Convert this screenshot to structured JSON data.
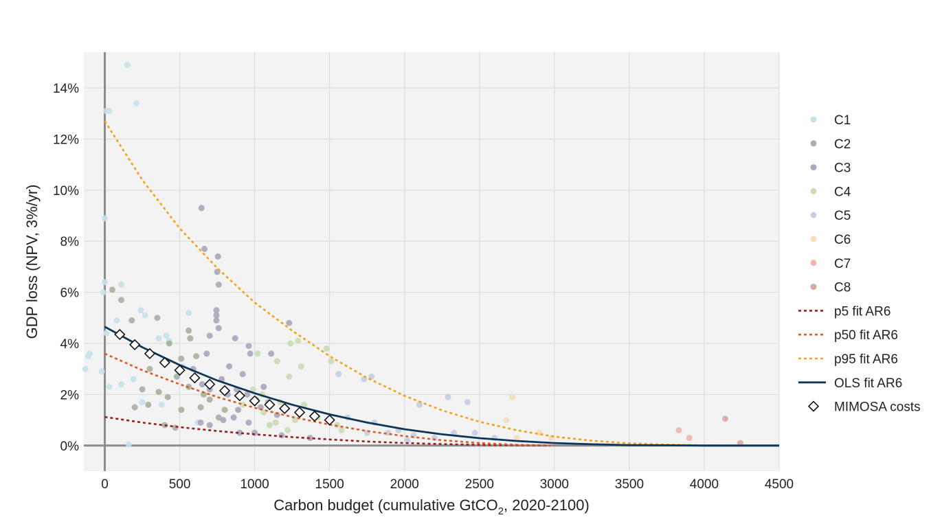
{
  "chart_data": {
    "type": "scatter",
    "xlabel_main": "Carbon budget (cumulative GtCO",
    "xlabel_sub": "2",
    "xlabel_tail": ", 2020-2100)",
    "ylabel": "GDP loss (NPV, 3%/yr)",
    "xlim": [
      -140,
      4500
    ],
    "ylim": [
      -1.0,
      15.4
    ],
    "x_ticks": [
      0,
      500,
      1000,
      1500,
      2000,
      2500,
      3000,
      3500,
      4000,
      4500
    ],
    "x_tick_labels": [
      "0",
      "500",
      "1000",
      "1500",
      "2000",
      "2500",
      "3000",
      "3500",
      "4000",
      "4500"
    ],
    "y_ticks": [
      0,
      2,
      4,
      6,
      8,
      10,
      12,
      14
    ],
    "y_tick_labels": [
      "0%",
      "2%",
      "4%",
      "6%",
      "8%",
      "10%",
      "12%",
      "14%"
    ],
    "grid": true,
    "legend_position": "right",
    "background_color": "#f3f3f3",
    "scatter_series": [
      {
        "name": "C1",
        "color": "#c6e1ea",
        "points": [
          [
            150,
            14.9
          ],
          [
            210,
            13.4
          ],
          [
            10,
            13.1
          ],
          [
            30,
            13.1
          ],
          [
            0,
            8.9
          ],
          [
            0,
            6.4
          ],
          [
            110,
            6.3
          ],
          [
            -10,
            6.0
          ],
          [
            80,
            4.9
          ],
          [
            240,
            5.3
          ],
          [
            270,
            5.1
          ],
          [
            -100,
            3.6
          ],
          [
            -110,
            3.5
          ],
          [
            -130,
            3.0
          ],
          [
            -20,
            2.9
          ],
          [
            10,
            4.4
          ],
          [
            30,
            2.3
          ],
          [
            110,
            2.4
          ],
          [
            190,
            2.6
          ],
          [
            160,
            0.05
          ],
          [
            360,
            4.2
          ],
          [
            410,
            4.3
          ],
          [
            430,
            4.1
          ],
          [
            560,
            5.2
          ],
          [
            380,
            1.6
          ],
          [
            620,
            0.9
          ],
          [
            250,
            1.7
          ],
          [
            520,
            3.1
          ]
        ]
      },
      {
        "name": "C2",
        "color": "#a9b09d",
        "points": [
          [
            50,
            6.1
          ],
          [
            110,
            5.7
          ],
          [
            180,
            4.9
          ],
          [
            350,
            5.0
          ],
          [
            430,
            4.0
          ],
          [
            510,
            3.4
          ],
          [
            560,
            4.5
          ],
          [
            570,
            4.2
          ],
          [
            610,
            3.5
          ],
          [
            480,
            2.7
          ],
          [
            420,
            1.9
          ],
          [
            360,
            2.1
          ],
          [
            250,
            2.2
          ],
          [
            200,
            1.5
          ],
          [
            290,
            1.6
          ],
          [
            400,
            0.8
          ],
          [
            510,
            1.4
          ],
          [
            470,
            0.7
          ],
          [
            640,
            1.5
          ],
          [
            700,
            1.8
          ],
          [
            760,
            1.1
          ],
          [
            560,
            2.3
          ],
          [
            660,
            2.0
          ],
          [
            300,
            3.0
          ],
          [
            800,
            1.4
          ]
        ]
      },
      {
        "name": "C3",
        "color": "#a8a7bb",
        "points": [
          [
            645,
            9.3
          ],
          [
            665,
            7.7
          ],
          [
            755,
            7.4
          ],
          [
            750,
            6.8
          ],
          [
            760,
            6.3
          ],
          [
            745,
            5.3
          ],
          [
            745,
            5.1
          ],
          [
            745,
            4.9
          ],
          [
            760,
            4.6
          ],
          [
            700,
            4.3
          ],
          [
            870,
            4.2
          ],
          [
            960,
            3.9
          ],
          [
            1110,
            3.6
          ],
          [
            1230,
            4.8
          ],
          [
            970,
            3.6
          ],
          [
            680,
            3.6
          ],
          [
            830,
            3.1
          ],
          [
            920,
            2.8
          ],
          [
            780,
            2.6
          ],
          [
            650,
            2.4
          ],
          [
            700,
            2.2
          ],
          [
            880,
            2.2
          ],
          [
            950,
            2.0
          ],
          [
            1010,
            1.8
          ],
          [
            1090,
            1.7
          ],
          [
            1040,
            1.5
          ],
          [
            890,
            1.4
          ],
          [
            860,
            1.1
          ],
          [
            790,
            1.0
          ],
          [
            700,
            0.8
          ],
          [
            640,
            0.9
          ],
          [
            960,
            0.9
          ],
          [
            1000,
            0.5
          ],
          [
            900,
            0.5
          ],
          [
            1150,
            1.2
          ],
          [
            1180,
            0.4
          ],
          [
            1370,
            0.3
          ],
          [
            590,
            3.0
          ],
          [
            820,
            2.0
          ],
          [
            1060,
            2.3
          ]
        ]
      },
      {
        "name": "C4",
        "color": "#c9dcb5",
        "points": [
          [
            1240,
            4.0
          ],
          [
            1290,
            4.1
          ],
          [
            1480,
            3.8
          ],
          [
            1510,
            3.3
          ],
          [
            1310,
            3.1
          ],
          [
            1150,
            3.3
          ],
          [
            1230,
            2.7
          ],
          [
            1020,
            3.6
          ],
          [
            990,
            2.2
          ],
          [
            1050,
            2.0
          ],
          [
            1170,
            1.7
          ],
          [
            1140,
            0.9
          ],
          [
            1270,
            1.0
          ],
          [
            1220,
            0.6
          ],
          [
            920,
            1.6
          ],
          [
            1060,
            1.3
          ],
          [
            1330,
            1.6
          ],
          [
            1420,
            1.1
          ],
          [
            1550,
            0.8
          ],
          [
            1580,
            0.6
          ],
          [
            1100,
            0.8
          ]
        ]
      },
      {
        "name": "C5",
        "color": "#c2cfe3",
        "points": [
          [
            1560,
            2.8
          ],
          [
            1730,
            2.6
          ],
          [
            1780,
            2.7
          ],
          [
            1800,
            0.9
          ],
          [
            1960,
            0.6
          ],
          [
            2100,
            1.6
          ],
          [
            2290,
            1.9
          ],
          [
            2420,
            1.7
          ],
          [
            1750,
            0.5
          ],
          [
            1890,
            0.5
          ],
          [
            2060,
            0.4
          ],
          [
            2330,
            0.5
          ],
          [
            2470,
            0.5
          ],
          [
            1620,
            1.1
          ],
          [
            2200,
            0.3
          ],
          [
            2600,
            0.3
          ],
          [
            2020,
            0.2
          ]
        ]
      },
      {
        "name": "C6",
        "color": "#f6dcc0",
        "points": [
          [
            2720,
            1.9
          ],
          [
            2680,
            1.0
          ],
          [
            2900,
            0.5
          ],
          [
            2750,
            0.3
          ],
          [
            2980,
            0.3
          ]
        ]
      },
      {
        "name": "C7",
        "color": "#eeb8a8",
        "points": [
          [
            3830,
            0.6
          ],
          [
            3900,
            0.3
          ]
        ]
      },
      {
        "name": "C8",
        "color": "#d9aaa3",
        "points": [
          [
            4140,
            1.05
          ],
          [
            4240,
            0.1
          ]
        ]
      }
    ],
    "curve_series": [
      {
        "name": "p5 fit AR6",
        "color": "#9b1b1b",
        "style": "dotted",
        "points": [
          [
            0,
            1.12
          ],
          [
            250,
            0.9
          ],
          [
            500,
            0.72
          ],
          [
            750,
            0.57
          ],
          [
            1000,
            0.44
          ],
          [
            1250,
            0.33
          ],
          [
            1500,
            0.24
          ],
          [
            1750,
            0.16
          ],
          [
            2000,
            0.1
          ],
          [
            2250,
            0.06
          ],
          [
            2500,
            0.03
          ],
          [
            2750,
            0.01
          ],
          [
            2950,
            0.0
          ]
        ]
      },
      {
        "name": "p50 fit AR6",
        "color": "#d95a26",
        "style": "dotted",
        "points": [
          [
            0,
            3.6
          ],
          [
            250,
            2.95
          ],
          [
            500,
            2.4
          ],
          [
            750,
            1.9
          ],
          [
            1000,
            1.48
          ],
          [
            1250,
            1.12
          ],
          [
            1500,
            0.82
          ],
          [
            1750,
            0.57
          ],
          [
            2000,
            0.37
          ],
          [
            2250,
            0.21
          ],
          [
            2500,
            0.1
          ],
          [
            2750,
            0.03
          ],
          [
            3000,
            0.0
          ]
        ]
      },
      {
        "name": "p95 fit AR6",
        "color": "#f2a316",
        "style": "dotted",
        "points": [
          [
            0,
            12.7
          ],
          [
            250,
            10.4
          ],
          [
            500,
            8.5
          ],
          [
            750,
            6.95
          ],
          [
            1000,
            5.6
          ],
          [
            1250,
            4.5
          ],
          [
            1500,
            3.5
          ],
          [
            1750,
            2.65
          ],
          [
            2000,
            1.95
          ],
          [
            2250,
            1.38
          ],
          [
            2500,
            0.93
          ],
          [
            2750,
            0.6
          ],
          [
            3000,
            0.35
          ],
          [
            3250,
            0.19
          ],
          [
            3500,
            0.09
          ],
          [
            3750,
            0.04
          ],
          [
            4000,
            0.01
          ],
          [
            4200,
            0.0
          ]
        ]
      },
      {
        "name": "OLS fit AR6",
        "color": "#0e3556",
        "style": "solid",
        "points": [
          [
            0,
            4.65
          ],
          [
            250,
            3.85
          ],
          [
            500,
            3.15
          ],
          [
            750,
            2.55
          ],
          [
            1000,
            2.05
          ],
          [
            1250,
            1.6
          ],
          [
            1500,
            1.22
          ],
          [
            1750,
            0.9
          ],
          [
            2000,
            0.64
          ],
          [
            2250,
            0.44
          ],
          [
            2500,
            0.29
          ],
          [
            2750,
            0.18
          ],
          [
            3000,
            0.1
          ],
          [
            3250,
            0.05
          ],
          [
            3500,
            0.02
          ],
          [
            3750,
            0.01
          ],
          [
            4000,
            0.0
          ],
          [
            4500,
            0.0
          ]
        ]
      }
    ],
    "mimosa_series": {
      "name": "MIMOSA costs",
      "points": [
        [
          100,
          4.35
        ],
        [
          200,
          3.95
        ],
        [
          300,
          3.6
        ],
        [
          400,
          3.25
        ],
        [
          500,
          2.95
        ],
        [
          600,
          2.65
        ],
        [
          700,
          2.4
        ],
        [
          800,
          2.15
        ],
        [
          900,
          1.95
        ],
        [
          1000,
          1.75
        ],
        [
          1100,
          1.6
        ],
        [
          1200,
          1.45
        ],
        [
          1300,
          1.3
        ],
        [
          1400,
          1.15
        ],
        [
          1500,
          1.0
        ]
      ]
    },
    "legend": [
      {
        "label": "C1",
        "kind": "dot",
        "color": "#c6e1ea"
      },
      {
        "label": "C2",
        "kind": "dot",
        "color": "#a9b09d"
      },
      {
        "label": "C3",
        "kind": "dot",
        "color": "#a8a7bb"
      },
      {
        "label": "C4",
        "kind": "dot",
        "color": "#c9dcb5"
      },
      {
        "label": "C5",
        "kind": "dot",
        "color": "#c2cfe3"
      },
      {
        "label": "C6",
        "kind": "dot",
        "color": "#f6dcc0"
      },
      {
        "label": "C7",
        "kind": "dot",
        "color": "#eeb8a8"
      },
      {
        "label": "C8",
        "kind": "dot",
        "color": "#d9aaa3"
      },
      {
        "label": "p5 fit AR6",
        "kind": "dotted",
        "color": "#9b1b1b"
      },
      {
        "label": "p50 fit AR6",
        "kind": "dotted",
        "color": "#d95a26"
      },
      {
        "label": "p95 fit AR6",
        "kind": "dotted",
        "color": "#f2a316"
      },
      {
        "label": "OLS fit AR6",
        "kind": "solid",
        "color": "#0e3556"
      },
      {
        "label": "MIMOSA costs",
        "kind": "diamond",
        "color": "#111111"
      }
    ]
  }
}
